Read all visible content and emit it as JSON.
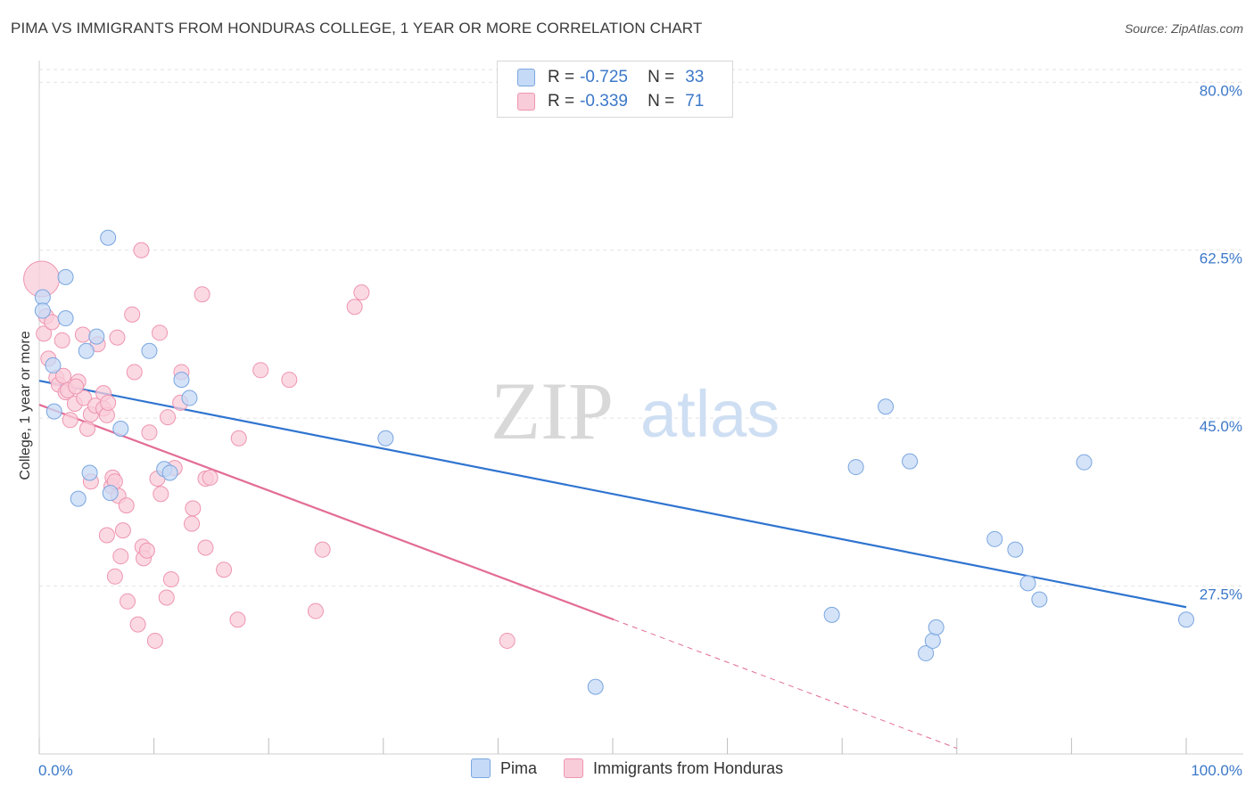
{
  "header": {
    "title": "PIMA VS IMMIGRANTS FROM HONDURAS COLLEGE, 1 YEAR OR MORE CORRELATION CHART",
    "source": "Source: ZipAtlas.com"
  },
  "watermark": {
    "zip": "ZIP",
    "atlas": "atlas"
  },
  "legend": {
    "rows": [
      {
        "r_label": "R =",
        "r_value": "-0.725",
        "n_label": "N =",
        "n_value": "33"
      },
      {
        "r_label": "R =",
        "r_value": "-0.339",
        "n_label": "N =",
        "n_value": "71"
      }
    ]
  },
  "colors": {
    "pima_fill": "#c5daf6",
    "pima_stroke": "#7aa6e0",
    "pima_line": "#2f74d0",
    "hond_fill": "#f9ccd9",
    "hond_stroke": "#ee95b0",
    "hond_line": "#e36c96",
    "tick_text": "#3b78c9",
    "grid": "#e2e2e2"
  },
  "chart_data": {
    "type": "scatter",
    "title": "PIMA VS IMMIGRANTS FROM HONDURAS COLLEGE, 1 YEAR OR MORE CORRELATION CHART",
    "xlabel": "",
    "ylabel": "College, 1 year or more",
    "xlim": [
      0,
      100
    ],
    "ylim": [
      10,
      83
    ],
    "x_tick_labels": [
      "0.0%",
      "100.0%"
    ],
    "y_ticks": [
      27.5,
      45.0,
      62.5,
      80.0
    ],
    "y_tick_labels": [
      "27.5%",
      "45.0%",
      "62.5%",
      "80.0%"
    ],
    "grid": "horizontal dashed",
    "series": [
      {
        "name": "Pima",
        "points": [
          [
            0.3,
            57.6
          ],
          [
            1.2,
            50.5
          ],
          [
            1.3,
            45.7
          ],
          [
            2.3,
            55.4
          ],
          [
            2.3,
            59.7
          ],
          [
            3.4,
            36.6
          ],
          [
            4.1,
            52.0
          ],
          [
            4.4,
            39.3
          ],
          [
            5.0,
            53.5
          ],
          [
            6.0,
            63.8
          ],
          [
            6.2,
            37.2
          ],
          [
            7.1,
            43.9
          ],
          [
            9.6,
            52.0
          ],
          [
            10.9,
            39.7
          ],
          [
            11.4,
            39.3
          ],
          [
            12.4,
            49.0
          ],
          [
            13.1,
            47.1
          ],
          [
            30.2,
            42.9
          ],
          [
            48.5,
            17.0
          ],
          [
            69.1,
            24.5
          ],
          [
            71.2,
            39.9
          ],
          [
            73.8,
            46.2
          ],
          [
            75.9,
            40.5
          ],
          [
            77.3,
            20.5
          ],
          [
            77.9,
            21.8
          ],
          [
            78.2,
            23.2
          ],
          [
            83.3,
            32.4
          ],
          [
            85.1,
            31.3
          ],
          [
            86.2,
            27.8
          ],
          [
            87.2,
            26.1
          ],
          [
            91.1,
            40.4
          ],
          [
            100.0,
            24.0
          ],
          [
            0.3,
            56.2
          ]
        ]
      },
      {
        "name": "Immigrants from Honduras",
        "points": [
          [
            0.2,
            59.5
          ],
          [
            0.4,
            53.8
          ],
          [
            0.6,
            55.6
          ],
          [
            0.8,
            51.2
          ],
          [
            1.1,
            55.0
          ],
          [
            1.5,
            49.2
          ],
          [
            1.7,
            48.5
          ],
          [
            2.1,
            49.4
          ],
          [
            2.3,
            47.7
          ],
          [
            2.5,
            47.9
          ],
          [
            2.7,
            44.8
          ],
          [
            3.1,
            46.5
          ],
          [
            3.4,
            48.8
          ],
          [
            3.8,
            53.7
          ],
          [
            3.9,
            47.1
          ],
          [
            4.2,
            43.9
          ],
          [
            4.5,
            45.4
          ],
          [
            4.5,
            38.4
          ],
          [
            4.9,
            46.3
          ],
          [
            5.1,
            52.7
          ],
          [
            5.6,
            47.6
          ],
          [
            5.6,
            46.0
          ],
          [
            5.9,
            45.3
          ],
          [
            5.9,
            32.8
          ],
          [
            6.0,
            46.6
          ],
          [
            6.3,
            37.9
          ],
          [
            6.4,
            38.8
          ],
          [
            6.6,
            38.4
          ],
          [
            6.6,
            28.5
          ],
          [
            6.9,
            36.9
          ],
          [
            7.1,
            30.6
          ],
          [
            7.3,
            33.3
          ],
          [
            7.6,
            35.9
          ],
          [
            7.7,
            25.9
          ],
          [
            8.1,
            55.8
          ],
          [
            8.3,
            49.8
          ],
          [
            8.6,
            23.5
          ],
          [
            8.9,
            62.5
          ],
          [
            9.0,
            31.6
          ],
          [
            9.1,
            30.4
          ],
          [
            9.4,
            31.2
          ],
          [
            9.6,
            43.5
          ],
          [
            10.1,
            21.8
          ],
          [
            10.3,
            38.7
          ],
          [
            10.5,
            53.9
          ],
          [
            10.6,
            37.1
          ],
          [
            11.1,
            26.3
          ],
          [
            11.2,
            45.1
          ],
          [
            11.5,
            28.2
          ],
          [
            11.8,
            39.8
          ],
          [
            12.3,
            46.6
          ],
          [
            12.4,
            49.8
          ],
          [
            13.3,
            34.0
          ],
          [
            13.4,
            35.6
          ],
          [
            14.2,
            57.9
          ],
          [
            14.5,
            31.5
          ],
          [
            14.5,
            38.7
          ],
          [
            14.9,
            38.8
          ],
          [
            16.1,
            29.2
          ],
          [
            17.3,
            24.0
          ],
          [
            17.4,
            42.9
          ],
          [
            19.3,
            50.0
          ],
          [
            21.8,
            49.0
          ],
          [
            24.1,
            24.9
          ],
          [
            24.7,
            31.3
          ],
          [
            27.5,
            56.6
          ],
          [
            28.1,
            58.1
          ],
          [
            40.8,
            21.8
          ],
          [
            3.2,
            48.3
          ],
          [
            2.0,
            53.1
          ],
          [
            6.8,
            53.4
          ]
        ]
      }
    ],
    "trend_lines": [
      {
        "series": "Pima",
        "x": [
          0,
          100
        ],
        "y": [
          48.9,
          25.3
        ],
        "style": "solid"
      },
      {
        "series": "Immigrants from Honduras",
        "x": [
          0,
          50.1
        ],
        "y": [
          46.4,
          24.0
        ],
        "style": "solid"
      },
      {
        "series": "Immigrants from Honduras",
        "x": [
          50.1,
          80
        ],
        "y": [
          24.0,
          10.6
        ],
        "style": "dashed"
      }
    ]
  },
  "bottom_legend": {
    "items": [
      "Pima",
      "Immigrants from Honduras"
    ]
  }
}
